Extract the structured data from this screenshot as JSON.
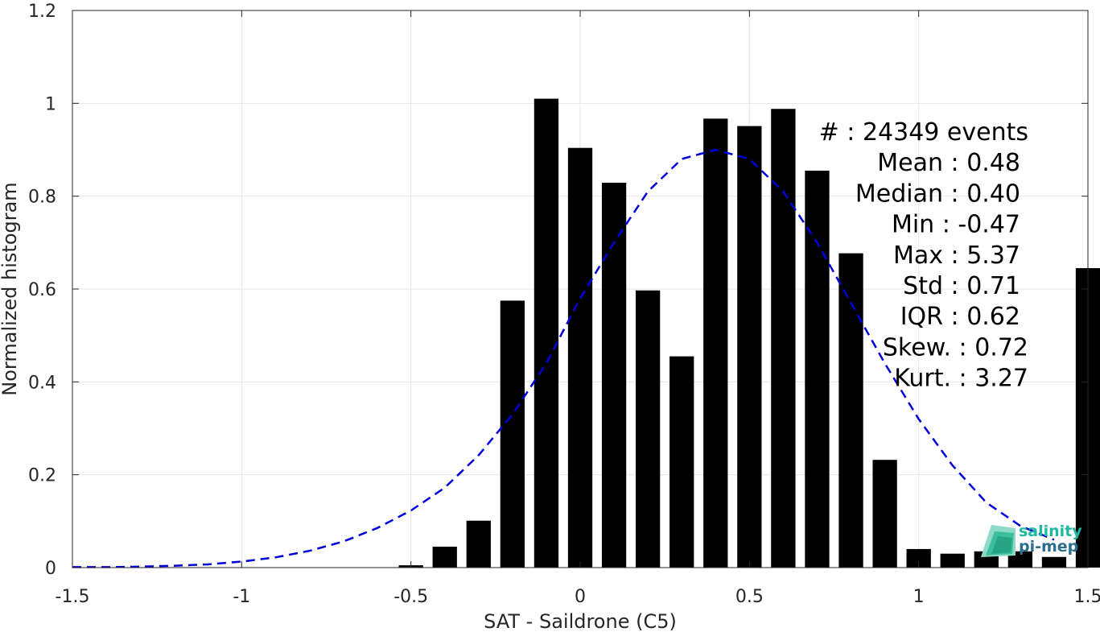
{
  "chart_data": {
    "type": "bar",
    "xlabel": "SAT - Saildrone (C5)",
    "ylabel": "Normalized histogram",
    "xlim": [
      -1.5,
      1.5
    ],
    "ylim": [
      0,
      1.2
    ],
    "xticks": [
      -1.5,
      -1,
      -0.5,
      0,
      0.5,
      1,
      1.5
    ],
    "xtick_labels": [
      "-1.5",
      "-1",
      "-0.5",
      "0",
      "0.5",
      "1",
      "1.5"
    ],
    "yticks": [
      0,
      0.2,
      0.4,
      0.6,
      0.8,
      1,
      1.2
    ],
    "ytick_labels": [
      "0",
      "0.2",
      "0.4",
      "0.6",
      "0.8",
      "1",
      "1.2"
    ],
    "grid": true,
    "bar_color": "#000000",
    "curve_color": "#0000dd",
    "bins_x": [
      -0.5,
      -0.4,
      -0.3,
      -0.2,
      -0.1,
      0.0,
      0.1,
      0.2,
      0.3,
      0.4,
      0.5,
      0.6,
      0.7,
      0.8,
      0.9,
      1.0,
      1.1,
      1.2,
      1.3,
      1.4,
      1.5
    ],
    "bins_y": [
      0.005,
      0.045,
      0.101,
      0.575,
      1.01,
      0.904,
      0.829,
      0.597,
      0.455,
      0.967,
      0.951,
      0.988,
      0.855,
      0.677,
      0.232,
      0.04,
      0.03,
      0.035,
      0.035,
      0.023,
      0.645
    ],
    "fit_curve": {
      "style": "dashed",
      "x": [
        -1.5,
        -1.4,
        -1.3,
        -1.2,
        -1.1,
        -1.0,
        -0.9,
        -0.8,
        -0.7,
        -0.6,
        -0.5,
        -0.4,
        -0.3,
        -0.2,
        -0.1,
        0.0,
        0.1,
        0.2,
        0.3,
        0.4,
        0.5,
        0.6,
        0.7,
        0.8,
        0.9,
        1.0,
        1.1,
        1.2,
        1.3,
        1.4
      ],
      "y": [
        0.001,
        0.001,
        0.002,
        0.004,
        0.007,
        0.013,
        0.022,
        0.036,
        0.056,
        0.085,
        0.123,
        0.172,
        0.242,
        0.33,
        0.44,
        0.58,
        0.7,
        0.81,
        0.88,
        0.9,
        0.88,
        0.81,
        0.7,
        0.57,
        0.44,
        0.32,
        0.22,
        0.14,
        0.09,
        0.06
      ]
    },
    "stats": [
      {
        "label": "#  : 24349 events"
      },
      {
        "label": "Mean : 0.48"
      },
      {
        "label": "Median : 0.40"
      },
      {
        "label": "Min : -0.47"
      },
      {
        "label": "Max : 5.37"
      },
      {
        "label": "Std : 0.71"
      },
      {
        "label": "IQR : 0.62"
      },
      {
        "label": "Skew. : 0.72"
      },
      {
        "label": "Kurt. : 3.27"
      }
    ]
  },
  "logo": {
    "line1": "salinity",
    "line2": "pi-mep",
    "color_primary": "#1fb8a0",
    "color_secondary": "#2b6f8f"
  }
}
